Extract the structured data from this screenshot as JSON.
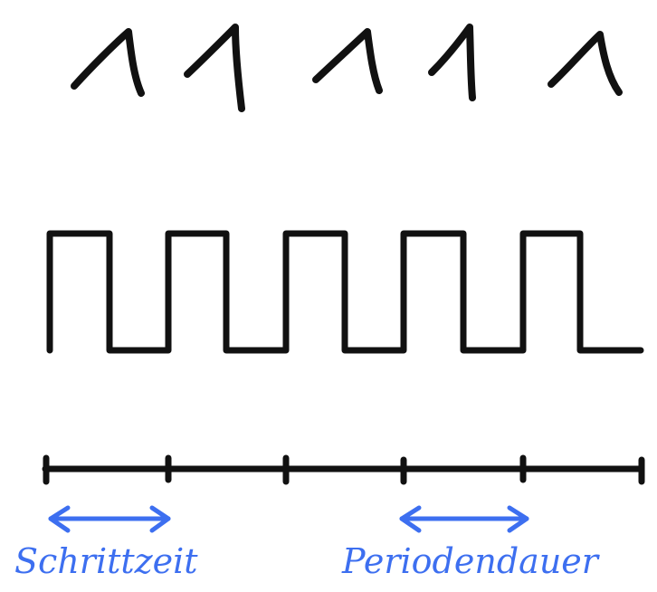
{
  "bits": [
    "1",
    "1",
    "1",
    "1",
    "1"
  ],
  "colors": {
    "ink": "#111111",
    "accent": "#3d6ff0"
  },
  "labels": {
    "step_time": "Schrittzeit",
    "period": "Periodendauer"
  }
}
